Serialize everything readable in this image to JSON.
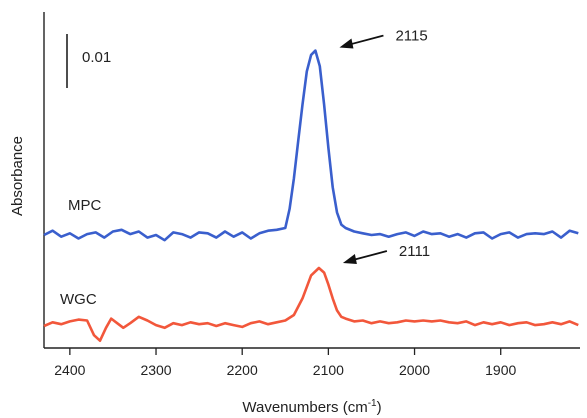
{
  "chart_data": {
    "type": "line",
    "xlabel": "Wavenumbers (cm",
    "xlabel_sup": "-1",
    "xlabel_tail": ")",
    "ylabel": "Absorbance",
    "x_reversed": true,
    "xlim": [
      2430,
      1808
    ],
    "xticks": [
      2400,
      2300,
      2200,
      2100,
      2000,
      1900
    ],
    "xtick_labels": [
      "2400",
      "2300",
      "2200",
      "2100",
      "2000",
      "1900"
    ],
    "y_tick_marks": false,
    "scale_bar_label": "0.01",
    "scale_bar_value": 0.01,
    "series": [
      {
        "name": "MPC",
        "color": "#3a5fcd",
        "peak_label": "2115",
        "peak_x": 2115,
        "points": [
          [
            2430,
            0.0
          ],
          [
            2420,
            0.0005
          ],
          [
            2410,
            -0.0002
          ],
          [
            2400,
            0.0002
          ],
          [
            2390,
            -0.0004
          ],
          [
            2380,
            0.0001
          ],
          [
            2370,
            0.0003
          ],
          [
            2360,
            -0.0003
          ],
          [
            2350,
            0.0004
          ],
          [
            2340,
            0.0006
          ],
          [
            2330,
            0.0001
          ],
          [
            2320,
            0.0004
          ],
          [
            2310,
            -0.0003
          ],
          [
            2300,
            0.0
          ],
          [
            2290,
            -0.0006
          ],
          [
            2280,
            0.0003
          ],
          [
            2270,
            0.0001
          ],
          [
            2260,
            -0.0003
          ],
          [
            2250,
            0.0003
          ],
          [
            2240,
            0.0002
          ],
          [
            2230,
            -0.0003
          ],
          [
            2220,
            0.0004
          ],
          [
            2210,
            -0.0002
          ],
          [
            2200,
            0.0003
          ],
          [
            2190,
            -0.0004
          ],
          [
            2180,
            0.0002
          ],
          [
            2170,
            0.0005
          ],
          [
            2160,
            0.0006
          ],
          [
            2150,
            0.0008
          ],
          [
            2145,
            0.003
          ],
          [
            2140,
            0.0065
          ],
          [
            2135,
            0.0108
          ],
          [
            2130,
            0.015
          ],
          [
            2125,
            0.0188
          ],
          [
            2120,
            0.0207
          ],
          [
            2115,
            0.0212
          ],
          [
            2110,
            0.0194
          ],
          [
            2105,
            0.015
          ],
          [
            2100,
            0.01
          ],
          [
            2095,
            0.0055
          ],
          [
            2090,
            0.0026
          ],
          [
            2085,
            0.0012
          ],
          [
            2080,
            0.0008
          ],
          [
            2070,
            0.0004
          ],
          [
            2060,
            0.0002
          ],
          [
            2050,
            0.0
          ],
          [
            2040,
            0.0001
          ],
          [
            2030,
            -0.0002
          ],
          [
            2020,
            0.0001
          ],
          [
            2010,
            0.0003
          ],
          [
            2000,
            -0.0001
          ],
          [
            1990,
            0.0004
          ],
          [
            1980,
            0.0001
          ],
          [
            1970,
            0.0002
          ],
          [
            1960,
            -0.0002
          ],
          [
            1950,
            0.0001
          ],
          [
            1940,
            -0.0003
          ],
          [
            1930,
            0.0002
          ],
          [
            1920,
            0.0003
          ],
          [
            1910,
            -0.0004
          ],
          [
            1900,
            0.0001
          ],
          [
            1890,
            0.0003
          ],
          [
            1880,
            -0.0003
          ],
          [
            1870,
            0.0001
          ],
          [
            1860,
            0.0002
          ],
          [
            1850,
            0.0001
          ],
          [
            1840,
            0.0004
          ],
          [
            1830,
            -0.0003
          ],
          [
            1820,
            0.0005
          ],
          [
            1810,
            0.0002
          ]
        ]
      },
      {
        "name": "WGC",
        "color": "#f2573b",
        "peak_label": "2111",
        "peak_x": 2111,
        "points": [
          [
            2430,
            0.0
          ],
          [
            2420,
            0.0004
          ],
          [
            2410,
            0.0002
          ],
          [
            2400,
            0.0005
          ],
          [
            2390,
            0.0007
          ],
          [
            2380,
            0.0006
          ],
          [
            2372,
            -0.001
          ],
          [
            2365,
            -0.0016
          ],
          [
            2358,
            -0.0002
          ],
          [
            2352,
            0.0008
          ],
          [
            2345,
            0.0003
          ],
          [
            2338,
            -0.0002
          ],
          [
            2330,
            0.0003
          ],
          [
            2320,
            0.001
          ],
          [
            2310,
            0.0006
          ],
          [
            2300,
            0.0001
          ],
          [
            2290,
            -0.0002
          ],
          [
            2280,
            0.0003
          ],
          [
            2270,
            0.0001
          ],
          [
            2260,
            0.0004
          ],
          [
            2250,
            0.0002
          ],
          [
            2240,
            0.0003
          ],
          [
            2230,
            0.0
          ],
          [
            2220,
            0.0003
          ],
          [
            2210,
            0.0001
          ],
          [
            2200,
            -0.0001
          ],
          [
            2190,
            0.0003
          ],
          [
            2180,
            0.0005
          ],
          [
            2170,
            0.0002
          ],
          [
            2160,
            0.0004
          ],
          [
            2150,
            0.0006
          ],
          [
            2140,
            0.0012
          ],
          [
            2130,
            0.003
          ],
          [
            2120,
            0.0055
          ],
          [
            2111,
            0.0063
          ],
          [
            2105,
            0.0058
          ],
          [
            2100,
            0.0045
          ],
          [
            2095,
            0.003
          ],
          [
            2090,
            0.0017
          ],
          [
            2085,
            0.001
          ],
          [
            2080,
            0.0008
          ],
          [
            2070,
            0.0005
          ],
          [
            2060,
            0.0006
          ],
          [
            2050,
            0.0003
          ],
          [
            2040,
            0.0005
          ],
          [
            2030,
            0.0003
          ],
          [
            2020,
            0.0004
          ],
          [
            2010,
            0.0006
          ],
          [
            2000,
            0.0005
          ],
          [
            1990,
            0.0006
          ],
          [
            1980,
            0.0005
          ],
          [
            1970,
            0.0006
          ],
          [
            1960,
            0.0004
          ],
          [
            1950,
            0.0003
          ],
          [
            1940,
            0.0005
          ],
          [
            1930,
            0.0001
          ],
          [
            1920,
            0.0004
          ],
          [
            1910,
            0.0002
          ],
          [
            1900,
            0.0004
          ],
          [
            1890,
            0.0001
          ],
          [
            1880,
            0.0003
          ],
          [
            1870,
            0.0004
          ],
          [
            1860,
            0.0001
          ],
          [
            1850,
            0.0002
          ],
          [
            1840,
            0.0004
          ],
          [
            1830,
            0.0002
          ],
          [
            1820,
            0.0005
          ],
          [
            1810,
            0.0001
          ]
        ]
      }
    ]
  }
}
